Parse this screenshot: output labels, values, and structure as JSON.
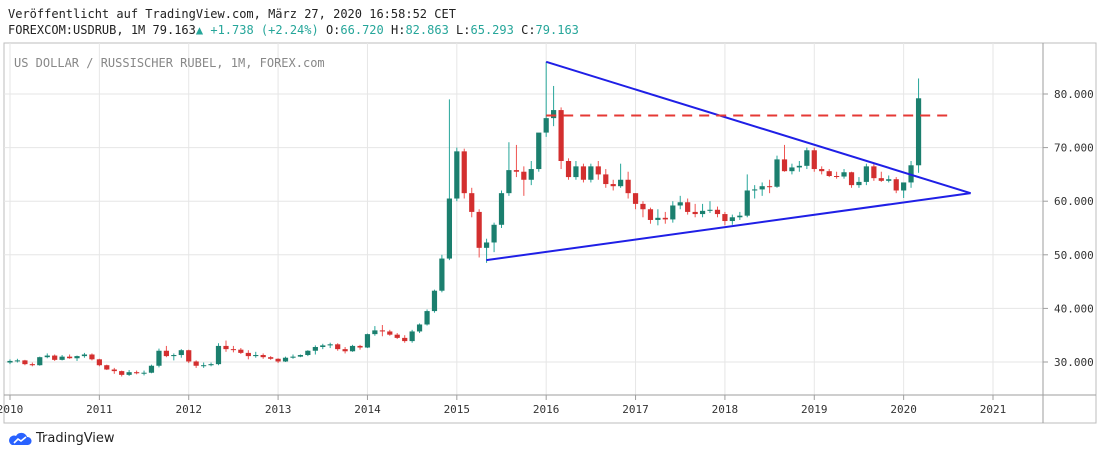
{
  "header": {
    "published": "Veröffentlicht auf TradingView.com, März 27, 2020 16:58:52 CET",
    "symbol": "FOREXCOM:USDRUB, 1M",
    "last": "79.163",
    "change": "+1.738 (+2.24%)",
    "o_label": "O:",
    "o_value": "66.720",
    "h_label": "H:",
    "h_value": "82.863",
    "l_label": "L:",
    "l_value": "65.293",
    "c_label": "C:",
    "c_value": "79.163"
  },
  "brand": {
    "name": "TradingView"
  },
  "colors": {
    "up": "#26a69a",
    "down": "#ef5350",
    "body_up": "#1b7f6e",
    "body_down": "#d32f2f",
    "trendline": "#1f1fe6",
    "resistance": "#e53935",
    "grid": "#e6e6e6"
  },
  "chart_data": {
    "type": "candlestick",
    "title": "US DOLLAR / RUSSISCHER RUBEL, 1M, FOREX.com",
    "x_ticks": [
      "2010",
      "2011",
      "2012",
      "2013",
      "2014",
      "2015",
      "2016",
      "2017",
      "2018",
      "2019",
      "2020",
      "2021"
    ],
    "y_ticks": [
      "30.000",
      "40.000",
      "50.000",
      "60.000",
      "70.000",
      "80.000"
    ],
    "ylim": [
      24,
      90
    ],
    "xlim": [
      2010.0,
      2021.6
    ],
    "candles": [
      [
        2010.0,
        29.9,
        30.5,
        29.6,
        30.2
      ],
      [
        2010.083,
        30.2,
        30.6,
        29.9,
        30.3
      ],
      [
        2010.167,
        30.3,
        30.4,
        29.4,
        29.6
      ],
      [
        2010.25,
        29.6,
        29.9,
        29.2,
        29.4
      ],
      [
        2010.333,
        29.4,
        31.0,
        29.3,
        30.9
      ],
      [
        2010.417,
        30.9,
        31.6,
        30.7,
        31.2
      ],
      [
        2010.5,
        31.2,
        31.4,
        30.2,
        30.4
      ],
      [
        2010.583,
        30.4,
        31.3,
        30.3,
        31.0
      ],
      [
        2010.667,
        31.0,
        31.4,
        30.6,
        30.7
      ],
      [
        2010.75,
        30.7,
        31.2,
        30.2,
        31.1
      ],
      [
        2010.833,
        31.1,
        31.7,
        30.8,
        31.4
      ],
      [
        2010.917,
        31.4,
        31.6,
        30.3,
        30.5
      ],
      [
        2011.0,
        30.5,
        30.6,
        29.2,
        29.4
      ],
      [
        2011.083,
        29.4,
        29.5,
        28.5,
        28.6
      ],
      [
        2011.167,
        28.6,
        28.9,
        27.8,
        28.3
      ],
      [
        2011.25,
        28.3,
        28.4,
        27.3,
        27.6
      ],
      [
        2011.333,
        27.6,
        28.5,
        27.4,
        28.1
      ],
      [
        2011.417,
        28.1,
        28.4,
        27.7,
        27.9
      ],
      [
        2011.5,
        27.9,
        28.4,
        27.5,
        28.0
      ],
      [
        2011.583,
        28.0,
        29.5,
        27.9,
        29.3
      ],
      [
        2011.667,
        29.3,
        32.5,
        29.0,
        32.1
      ],
      [
        2011.75,
        32.1,
        33.0,
        30.9,
        31.1
      ],
      [
        2011.833,
        31.1,
        31.6,
        30.3,
        31.3
      ],
      [
        2011.917,
        31.3,
        32.4,
        30.8,
        32.2
      ],
      [
        2012.0,
        32.2,
        32.3,
        29.8,
        30.1
      ],
      [
        2012.083,
        30.1,
        30.3,
        28.9,
        29.3
      ],
      [
        2012.167,
        29.3,
        29.9,
        28.9,
        29.4
      ],
      [
        2012.25,
        29.4,
        29.9,
        29.2,
        29.6
      ],
      [
        2012.333,
        29.6,
        33.5,
        29.4,
        33.0
      ],
      [
        2012.417,
        33.0,
        34.0,
        31.9,
        32.4
      ],
      [
        2012.5,
        32.4,
        33.0,
        31.8,
        32.3
      ],
      [
        2012.583,
        32.3,
        32.6,
        31.5,
        31.7
      ],
      [
        2012.667,
        31.7,
        32.2,
        30.5,
        31.1
      ],
      [
        2012.75,
        31.1,
        31.9,
        30.8,
        31.3
      ],
      [
        2012.833,
        31.3,
        31.6,
        30.6,
        30.9
      ],
      [
        2012.917,
        30.9,
        31.1,
        30.4,
        30.6
      ],
      [
        2013.0,
        30.6,
        30.7,
        29.8,
        30.1
      ],
      [
        2013.083,
        30.1,
        31.0,
        30.0,
        30.8
      ],
      [
        2013.167,
        30.8,
        31.4,
        30.6,
        31.0
      ],
      [
        2013.25,
        31.0,
        31.4,
        30.9,
        31.3
      ],
      [
        2013.333,
        31.3,
        32.2,
        31.1,
        32.1
      ],
      [
        2013.417,
        32.1,
        33.1,
        31.4,
        32.8
      ],
      [
        2013.5,
        32.8,
        33.4,
        32.4,
        33.1
      ],
      [
        2013.583,
        33.1,
        33.6,
        32.6,
        33.3
      ],
      [
        2013.667,
        33.3,
        33.5,
        32.1,
        32.4
      ],
      [
        2013.75,
        32.4,
        32.8,
        31.6,
        32.0
      ],
      [
        2013.833,
        32.0,
        33.2,
        31.9,
        33.0
      ],
      [
        2013.917,
        33.0,
        33.2,
        32.3,
        32.7
      ],
      [
        2014.0,
        32.7,
        35.3,
        32.6,
        35.2
      ],
      [
        2014.083,
        35.2,
        36.7,
        34.9,
        35.9
      ],
      [
        2014.167,
        35.9,
        36.9,
        34.8,
        35.7
      ],
      [
        2014.25,
        35.7,
        36.0,
        34.9,
        35.1
      ],
      [
        2014.333,
        35.1,
        35.4,
        34.3,
        34.5
      ],
      [
        2014.417,
        34.5,
        35.0,
        33.6,
        33.9
      ],
      [
        2014.5,
        33.9,
        36.0,
        33.6,
        35.7
      ],
      [
        2014.583,
        35.7,
        37.2,
        35.4,
        37.0
      ],
      [
        2014.667,
        37.0,
        39.8,
        36.8,
        39.5
      ],
      [
        2014.75,
        39.5,
        43.5,
        39.2,
        43.3
      ],
      [
        2014.833,
        43.3,
        50.0,
        43.0,
        49.3
      ],
      [
        2014.917,
        49.3,
        79.0,
        49.0,
        60.5
      ],
      [
        2015.0,
        60.5,
        70.0,
        60.0,
        69.3
      ],
      [
        2015.083,
        69.3,
        69.8,
        60.5,
        61.5
      ],
      [
        2015.167,
        61.5,
        62.5,
        57.0,
        58.0
      ],
      [
        2015.25,
        58.0,
        58.5,
        49.5,
        51.3
      ],
      [
        2015.333,
        51.3,
        53.0,
        48.5,
        52.3
      ],
      [
        2015.417,
        52.3,
        56.0,
        50.5,
        55.6
      ],
      [
        2015.5,
        55.6,
        62.0,
        55.0,
        61.5
      ],
      [
        2015.583,
        61.5,
        71.0,
        61.0,
        65.8
      ],
      [
        2015.667,
        65.8,
        70.5,
        64.5,
        65.5
      ],
      [
        2015.75,
        65.5,
        66.5,
        61.0,
        64.0
      ],
      [
        2015.833,
        64.0,
        67.5,
        63.0,
        66.0
      ],
      [
        2015.917,
        66.0,
        72.5,
        65.5,
        72.8
      ],
      [
        2016.0,
        72.8,
        86.0,
        72.0,
        75.5
      ],
      [
        2016.083,
        75.5,
        81.5,
        74.0,
        77.0
      ],
      [
        2016.167,
        77.0,
        77.5,
        66.0,
        67.5
      ],
      [
        2016.25,
        67.5,
        68.0,
        64.0,
        64.5
      ],
      [
        2016.333,
        64.5,
        67.5,
        64.0,
        66.5
      ],
      [
        2016.417,
        66.5,
        67.0,
        63.5,
        64.0
      ],
      [
        2016.5,
        64.0,
        67.0,
        63.5,
        66.5
      ],
      [
        2016.583,
        66.5,
        67.5,
        64.0,
        65.0
      ],
      [
        2016.667,
        65.0,
        66.0,
        62.5,
        63.2
      ],
      [
        2016.75,
        63.2,
        64.0,
        62.0,
        62.8
      ],
      [
        2016.833,
        62.8,
        67.0,
        62.5,
        64.0
      ],
      [
        2016.917,
        64.0,
        65.5,
        60.5,
        61.5
      ],
      [
        2017.0,
        61.5,
        61.5,
        58.5,
        59.5
      ],
      [
        2017.083,
        59.5,
        60.0,
        57.0,
        58.5
      ],
      [
        2017.167,
        58.5,
        58.8,
        55.8,
        56.5
      ],
      [
        2017.25,
        56.5,
        58.5,
        55.5,
        56.9
      ],
      [
        2017.333,
        56.9,
        58.0,
        55.8,
        56.6
      ],
      [
        2017.417,
        56.6,
        60.0,
        56.0,
        59.2
      ],
      [
        2017.5,
        59.2,
        61.0,
        58.5,
        59.8
      ],
      [
        2017.583,
        59.8,
        60.5,
        57.5,
        58.0
      ],
      [
        2017.667,
        58.0,
        59.5,
        57.0,
        57.6
      ],
      [
        2017.75,
        57.6,
        59.5,
        57.0,
        58.2
      ],
      [
        2017.833,
        58.2,
        60.0,
        57.8,
        58.4
      ],
      [
        2017.917,
        58.4,
        59.0,
        57.0,
        57.6
      ],
      [
        2018.0,
        57.6,
        58.0,
        55.5,
        56.3
      ],
      [
        2018.083,
        56.3,
        57.5,
        55.6,
        57.0
      ],
      [
        2018.167,
        57.0,
        58.0,
        56.5,
        57.3
      ],
      [
        2018.25,
        57.3,
        65.0,
        57.0,
        62.0
      ],
      [
        2018.333,
        62.0,
        63.0,
        60.5,
        62.2
      ],
      [
        2018.417,
        62.2,
        63.5,
        61.0,
        62.8
      ],
      [
        2018.5,
        62.8,
        64.0,
        61.5,
        62.7
      ],
      [
        2018.583,
        62.7,
        68.5,
        62.5,
        67.8
      ],
      [
        2018.667,
        67.8,
        70.5,
        65.5,
        65.6
      ],
      [
        2018.75,
        65.6,
        67.0,
        65.0,
        66.3
      ],
      [
        2018.833,
        66.3,
        67.5,
        65.5,
        66.6
      ],
      [
        2018.917,
        66.6,
        70.0,
        66.0,
        69.5
      ],
      [
        2019.0,
        69.5,
        70.0,
        65.5,
        66.0
      ],
      [
        2019.083,
        66.0,
        66.5,
        65.0,
        65.6
      ],
      [
        2019.167,
        65.6,
        66.0,
        64.5,
        64.7
      ],
      [
        2019.25,
        64.7,
        65.5,
        64.2,
        64.6
      ],
      [
        2019.333,
        64.6,
        66.0,
        64.2,
        65.4
      ],
      [
        2019.417,
        65.4,
        65.5,
        62.5,
        63.0
      ],
      [
        2019.5,
        63.0,
        64.5,
        62.5,
        63.6
      ],
      [
        2019.583,
        63.6,
        67.0,
        63.0,
        66.5
      ],
      [
        2019.667,
        66.5,
        67.0,
        63.8,
        64.3
      ],
      [
        2019.75,
        64.3,
        65.5,
        63.6,
        63.8
      ],
      [
        2019.833,
        63.8,
        64.8,
        63.5,
        64.1
      ],
      [
        2019.917,
        64.1,
        64.5,
        61.5,
        62.0
      ],
      [
        2020.0,
        62.0,
        63.0,
        60.6,
        63.5
      ],
      [
        2020.083,
        63.5,
        67.5,
        62.5,
        66.7
      ],
      [
        2020.167,
        66.7,
        82.9,
        65.3,
        79.2
      ]
    ],
    "trendlines": [
      {
        "from": [
          2016.0,
          86.0
        ],
        "to": [
          2020.75,
          61.5
        ]
      },
      {
        "from": [
          2015.33,
          49.0
        ],
        "to": [
          2020.75,
          61.5
        ]
      }
    ],
    "resistance": {
      "y": 76.0,
      "from": 2016.0,
      "to": 2020.5
    }
  }
}
